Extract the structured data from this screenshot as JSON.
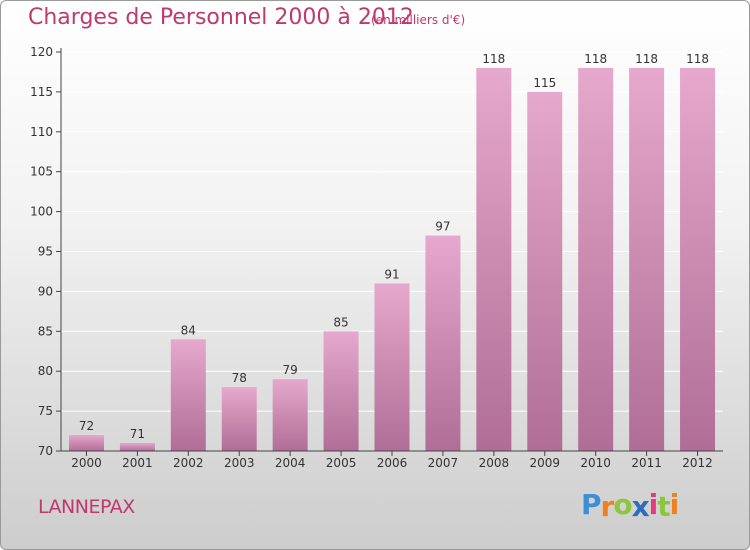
{
  "header": {
    "title": "Charges de Personnel 2000 à 2012",
    "subtitle": "(en milliers d'€)"
  },
  "footer": {
    "commune": "LANNEPAX",
    "logo_letters": [
      "P",
      "r",
      "o",
      "x",
      "i",
      "t",
      "i"
    ],
    "logo_colors": [
      "#3a8fd6",
      "#f07f1e",
      "#8cc63e",
      "#2a6ebd",
      "#e23a7a",
      "#8cc63e",
      "#f07f1e"
    ]
  },
  "colors": {
    "title": "#c0396d",
    "bar_light": "#e6a8cc",
    "bar_dark": "#b06e96",
    "grid": "#ffffff"
  },
  "chart_data": {
    "type": "bar",
    "title": "Charges de Personnel 2000 à 2012",
    "subtitle": "(en milliers d'€)",
    "categories": [
      "2000",
      "2001",
      "2002",
      "2003",
      "2004",
      "2005",
      "2006",
      "2007",
      "2008",
      "2009",
      "2010",
      "2011",
      "2012"
    ],
    "values": [
      72,
      71,
      84,
      78,
      79,
      85,
      91,
      97,
      118,
      115,
      118,
      118,
      118
    ],
    "data_labels": [
      "72",
      "71",
      "84",
      "78",
      "79",
      "85",
      "91",
      "97",
      "118",
      "115",
      "118",
      "118",
      "118"
    ],
    "ylim": [
      70,
      120
    ],
    "yticks": [
      70,
      75,
      80,
      85,
      90,
      95,
      100,
      105,
      110,
      115,
      120
    ],
    "grid": true,
    "legend": false,
    "xlabel": "",
    "ylabel": ""
  }
}
